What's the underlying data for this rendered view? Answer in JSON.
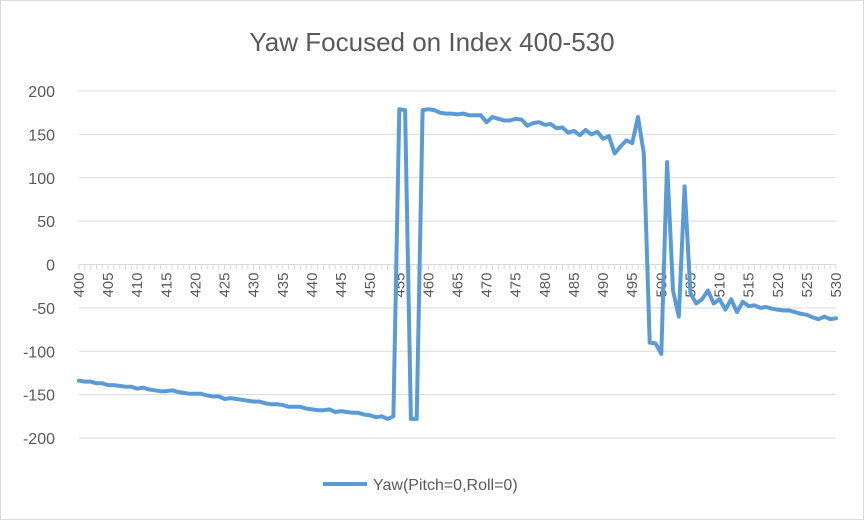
{
  "chart_data": {
    "type": "line",
    "title": "Yaw Focused on Index 400-530",
    "xlabel": "",
    "ylabel": "",
    "xlim": [
      400,
      530
    ],
    "ylim": [
      -200,
      200
    ],
    "y_ticks": [
      -200,
      -150,
      -100,
      -50,
      0,
      50,
      100,
      150,
      200
    ],
    "x_ticks": [
      400,
      405,
      410,
      415,
      420,
      425,
      430,
      435,
      440,
      445,
      450,
      455,
      460,
      465,
      470,
      475,
      480,
      485,
      490,
      495,
      500,
      505,
      510,
      515,
      520,
      525,
      530
    ],
    "legend_position": "bottom",
    "colors": {
      "series": "#5b9bd5",
      "axis": "#d9d9d9",
      "text": "#595959"
    },
    "series": [
      {
        "name": "Yaw(Pitch=0,Roll=0)",
        "x": [
          400,
          401,
          402,
          403,
          404,
          405,
          406,
          407,
          408,
          409,
          410,
          411,
          412,
          413,
          414,
          415,
          416,
          417,
          418,
          419,
          420,
          421,
          422,
          423,
          424,
          425,
          426,
          427,
          428,
          429,
          430,
          431,
          432,
          433,
          434,
          435,
          436,
          437,
          438,
          439,
          440,
          441,
          442,
          443,
          444,
          445,
          446,
          447,
          448,
          449,
          450,
          451,
          452,
          453,
          454,
          455,
          456,
          457,
          458,
          459,
          460,
          461,
          462,
          463,
          464,
          465,
          466,
          467,
          468,
          469,
          470,
          471,
          472,
          473,
          474,
          475,
          476,
          477,
          478,
          479,
          480,
          481,
          482,
          483,
          484,
          485,
          486,
          487,
          488,
          489,
          490,
          491,
          492,
          493,
          494,
          495,
          496,
          497,
          498,
          499,
          500,
          501,
          502,
          503,
          504,
          505,
          506,
          507,
          508,
          509,
          510,
          511,
          512,
          513,
          514,
          515,
          516,
          517,
          518,
          519,
          520,
          521,
          522,
          523,
          524,
          525,
          526,
          527,
          528,
          529,
          530
        ],
        "values": [
          -134,
          -135,
          -135,
          -137,
          -137,
          -139,
          -139,
          -140,
          -141,
          -141,
          -143,
          -142,
          -144,
          -145,
          -146,
          -146,
          -145,
          -147,
          -148,
          -149,
          -149,
          -149,
          -151,
          -152,
          -152,
          -155,
          -154,
          -155,
          -156,
          -157,
          -158,
          -158,
          -160,
          -161,
          -161,
          -162,
          -164,
          -164,
          -164,
          -166,
          -167,
          -168,
          -168,
          -167,
          -170,
          -169,
          -170,
          -171,
          -171,
          -173,
          -174,
          -176,
          -175,
          -178,
          -175,
          179,
          178,
          -178,
          -178,
          178,
          179,
          178,
          175,
          174,
          174,
          173,
          174,
          172,
          172,
          172,
          164,
          170,
          168,
          166,
          166,
          168,
          167,
          160,
          163,
          164,
          161,
          162,
          157,
          158,
          152,
          154,
          149,
          155,
          150,
          153,
          145,
          148,
          128,
          136,
          143,
          140,
          170,
          128,
          -90,
          -91,
          -103,
          118,
          -30,
          -60,
          90,
          -33,
          -45,
          -40,
          -30,
          -45,
          -40,
          -52,
          -40,
          -55,
          -43,
          -48,
          -47,
          -50,
          -49,
          -51,
          -52,
          -53,
          -53,
          -55,
          -57,
          -58,
          -61,
          -63,
          -60,
          -63,
          -62
        ]
      }
    ]
  }
}
